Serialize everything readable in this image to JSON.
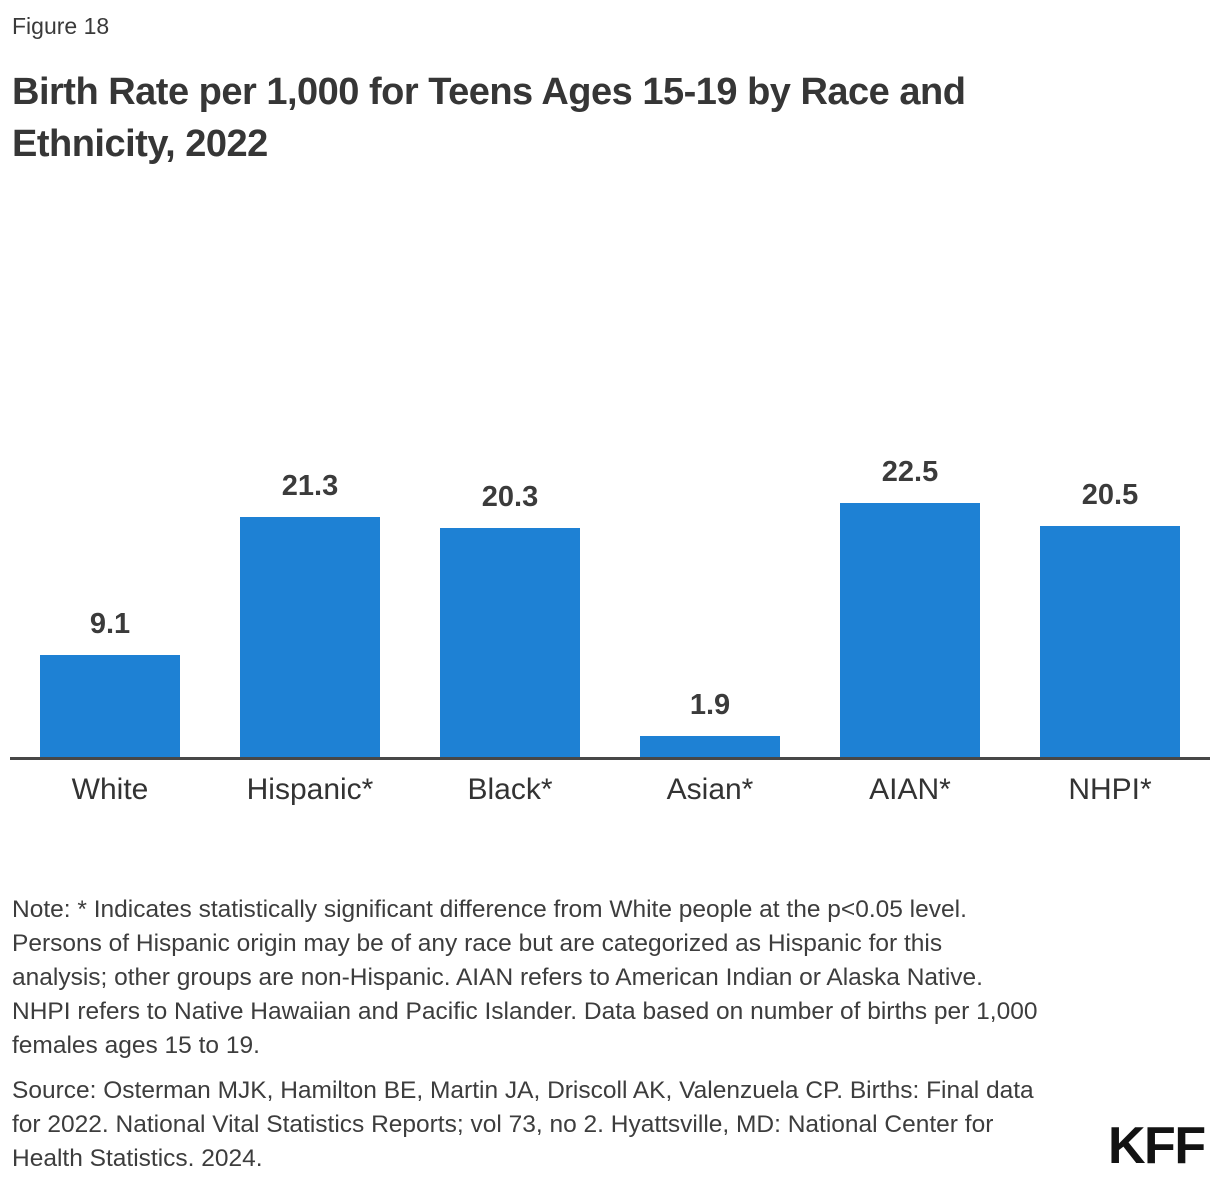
{
  "header": {
    "figure_label": "Figure 18",
    "title_lines": [
      "Birth Rate per 1,000 for Teens Ages 15-19 by Race and",
      "Ethnicity, 2022"
    ]
  },
  "chart_data": {
    "type": "bar",
    "title": "Birth Rate per 1,000 for Teens Ages 15-19 by Race and Ethnicity, 2022",
    "categories": [
      "White",
      "Hispanic*",
      "Black*",
      "Asian*",
      "AIAN*",
      "NHPI*"
    ],
    "values": [
      9.1,
      21.3,
      20.3,
      1.9,
      22.5,
      20.5
    ],
    "value_labels": [
      "9.1",
      "21.3",
      "20.3",
      "1.9",
      "22.5",
      "20.5"
    ],
    "xlabel": "",
    "ylabel": "Births per 1,000 females ages 15 to 19",
    "ylim": [
      0,
      25
    ],
    "grid": false,
    "legend": "none",
    "bar_color": "#1E81D4"
  },
  "footer": {
    "note_lines": [
      "Note: * Indicates statistically significant difference from White people at the p<0.05 level.",
      "Persons of Hispanic origin may be of any race but are categorized as Hispanic for this",
      "analysis; other groups are non-Hispanic. AIAN refers to American Indian or Alaska Native.",
      "NHPI refers to Native Hawaiian and Pacific Islander. Data based on number of births per 1,000",
      "females ages 15 to 19."
    ],
    "source_lines": [
      "Source: Osterman MJK, Hamilton BE, Martin JA, Driscoll AK, Valenzuela CP. Births: Final data",
      "for 2022. National Vital Statistics Reports; vol 73, no 2. Hyattsville, MD: National Center for",
      "Health Statistics. 2024."
    ],
    "logo_text": "KFF"
  },
  "colors": {
    "accent_blue": "#1E81D4",
    "text": "#333333",
    "axis_line": "#474747",
    "logo": "#131313"
  }
}
